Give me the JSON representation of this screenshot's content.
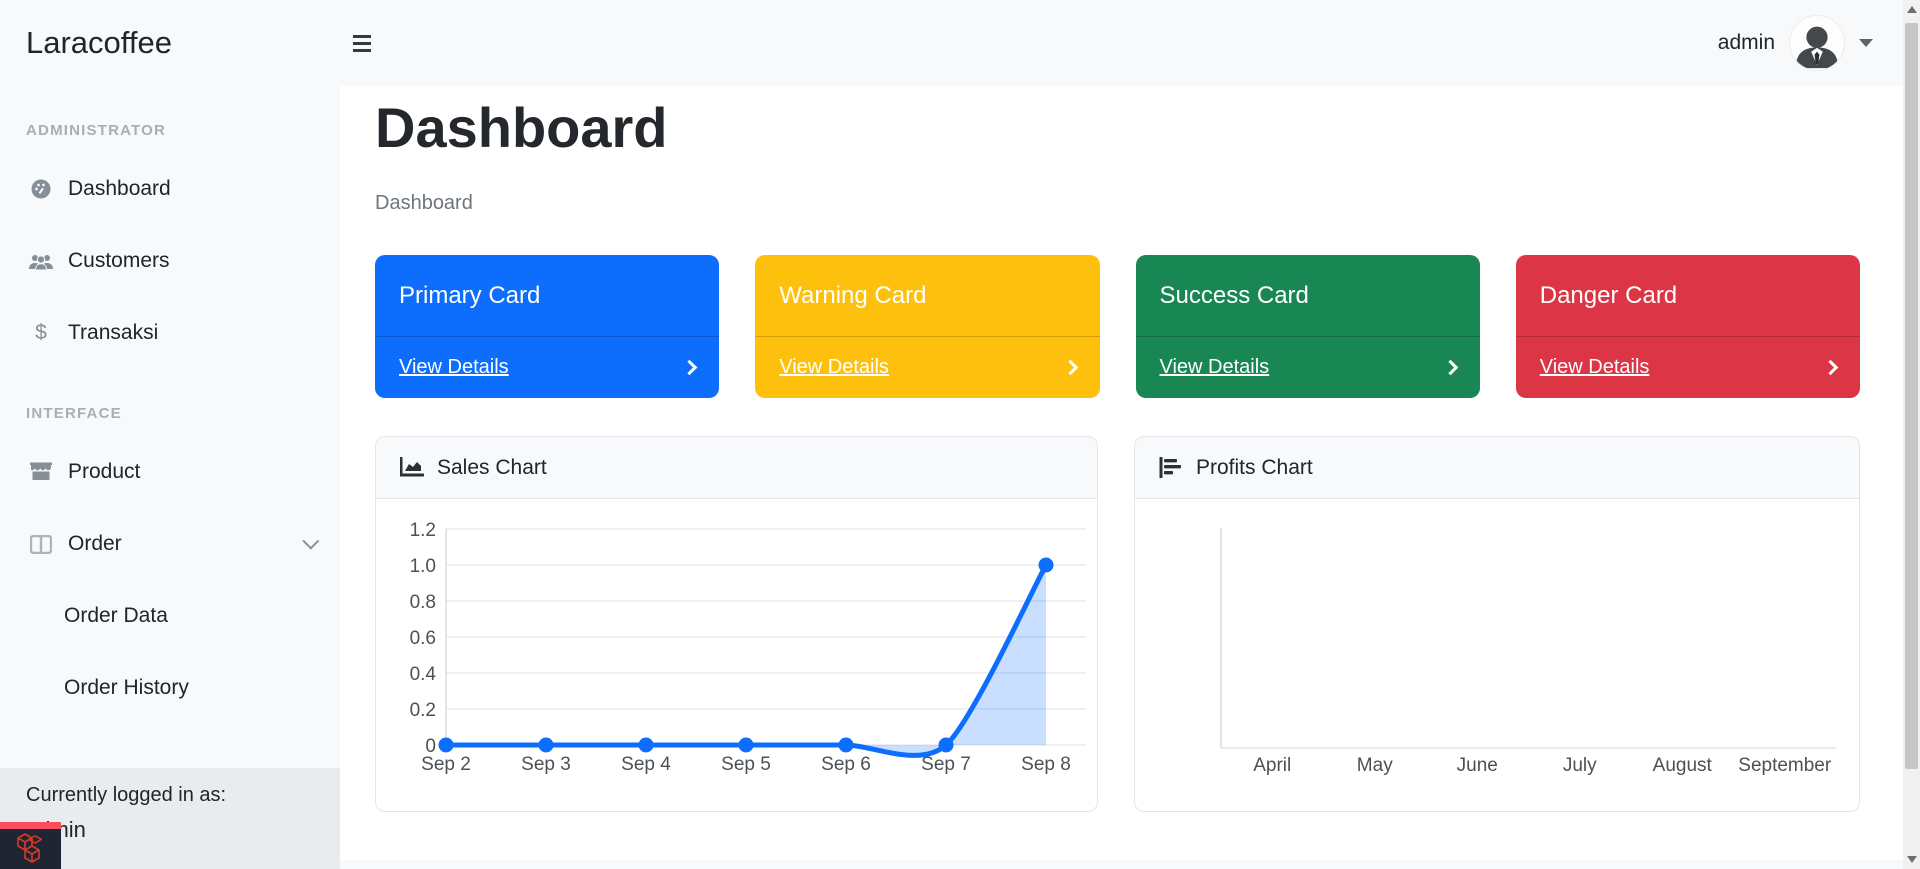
{
  "brand": "Laracoffee",
  "navbar": {
    "username": "admin"
  },
  "icons": {
    "dollar": "$"
  },
  "sidebar": {
    "sections": [
      {
        "heading": "ADMINISTRATOR",
        "items": [
          {
            "label": "Dashboard",
            "icon": "tachometer"
          },
          {
            "label": "Customers",
            "icon": "users"
          },
          {
            "label": "Transaksi",
            "icon": "dollar-sign"
          }
        ]
      },
      {
        "heading": "INTERFACE",
        "items": [
          {
            "label": "Product",
            "icon": "store"
          },
          {
            "label": "Order",
            "icon": "columns",
            "expanded": true,
            "children": [
              "Order Data",
              "Order History"
            ]
          }
        ]
      }
    ],
    "footer": {
      "line1": "Currently logged in as:",
      "line2": "admin"
    }
  },
  "page": {
    "title": "Dashboard",
    "breadcrumb": "Dashboard"
  },
  "cards": [
    {
      "title": "Primary Card",
      "link": "View Details",
      "color": "#0d6efd"
    },
    {
      "title": "Warning Card",
      "link": "View Details",
      "color": "#fdc10d"
    },
    {
      "title": "Success Card",
      "link": "View Details",
      "color": "#198754"
    },
    {
      "title": "Danger Card",
      "link": "View Details",
      "color": "#dc3545"
    }
  ],
  "chart_data": [
    {
      "type": "line",
      "title": "Sales Chart",
      "categories": [
        "Sep 2",
        "Sep 3",
        "Sep 4",
        "Sep 5",
        "Sep 6",
        "Sep 7",
        "Sep 8"
      ],
      "values": [
        0,
        0,
        0,
        0,
        0,
        0,
        1.0
      ],
      "ylim": [
        0,
        1.2
      ],
      "ytick_step": 0.2,
      "ytick_labels": [
        "0",
        "0.2",
        "0.4",
        "0.6",
        "0.8",
        "1.0",
        "1.2"
      ],
      "xlabel": "",
      "ylabel": "",
      "grid": true,
      "legend": false,
      "line_color": "#0d6efd",
      "fill_color": "rgba(13,110,253,0.22)"
    },
    {
      "type": "bar",
      "title": "Profits Chart",
      "categories": [
        "April",
        "May",
        "June",
        "July",
        "August",
        "September"
      ],
      "values": [
        0,
        0,
        0,
        0,
        0,
        0
      ],
      "ylim": [
        0,
        1
      ],
      "xlabel": "",
      "ylabel": "",
      "grid": false,
      "legend": false
    }
  ]
}
